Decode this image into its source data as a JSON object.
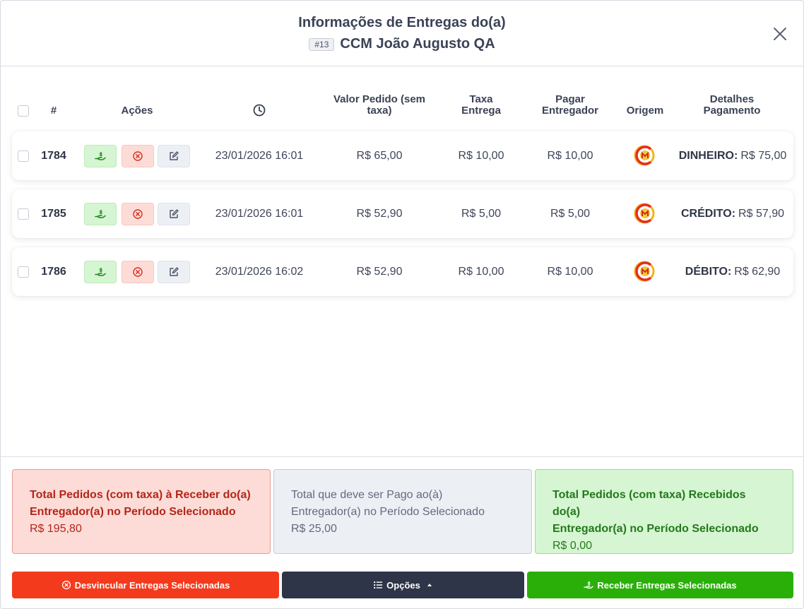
{
  "modal": {
    "title": "Informações de Entregas do(a)",
    "courier_id": "#13",
    "courier_name": "CCM João Augusto QA"
  },
  "table": {
    "headers": {
      "number": "#",
      "actions": "Ações",
      "time_icon": "clock-icon",
      "order_value_line1": "Valor Pedido (sem",
      "order_value_line2": "taxa)",
      "fee_line1": "Taxa",
      "fee_line2": "Entrega",
      "pay_courier_line1": "Pagar",
      "pay_courier_line2": "Entregador",
      "origin": "Origem",
      "payment_details_line1": "Detalhes",
      "payment_details_line2": "Pagamento"
    },
    "rows": [
      {
        "id": "1784",
        "datetime": "23/01/2026 16:01",
        "order_value": "R$ 65,00",
        "fee": "R$ 10,00",
        "pay_courier": "R$ 10,00",
        "payment_method": "DINHEIRO:",
        "payment_amount": "R$ 75,00"
      },
      {
        "id": "1785",
        "datetime": "23/01/2026 16:01",
        "order_value": "R$ 52,90",
        "fee": "R$ 5,00",
        "pay_courier": "R$ 5,00",
        "payment_method": "CRÉDITO:",
        "payment_amount": "R$ 57,90"
      },
      {
        "id": "1786",
        "datetime": "23/01/2026 16:02",
        "order_value": "R$ 52,90",
        "fee": "R$ 10,00",
        "pay_courier": "R$ 10,00",
        "payment_method": "DÉBITO:",
        "payment_amount": "R$ 62,90"
      }
    ]
  },
  "summary": {
    "to_receive": {
      "line1": "Total Pedidos (com taxa) à Receber do(a)",
      "line2": "Entregador(a) no Período Selecionado",
      "value": "R$ 195,80"
    },
    "to_pay": {
      "line1": "Total que deve ser Pago ao(à)",
      "line2": "Entregador(a) no Período Selecionado",
      "value": "R$ 25,00"
    },
    "received": {
      "line1": "Total Pedidos (com taxa) Recebidos do(a)",
      "line2": "Entregador(a) no Período Selecionado",
      "value": "R$ 0,00"
    }
  },
  "footer": {
    "unlink_label": "Desvincular Entregas Selecionadas",
    "options_label": "Opções",
    "receive_label": "Receber Entregas Selecionadas"
  },
  "colors": {
    "danger": "#f43a1c",
    "dark": "#2f3548",
    "success": "#2aaf09"
  }
}
